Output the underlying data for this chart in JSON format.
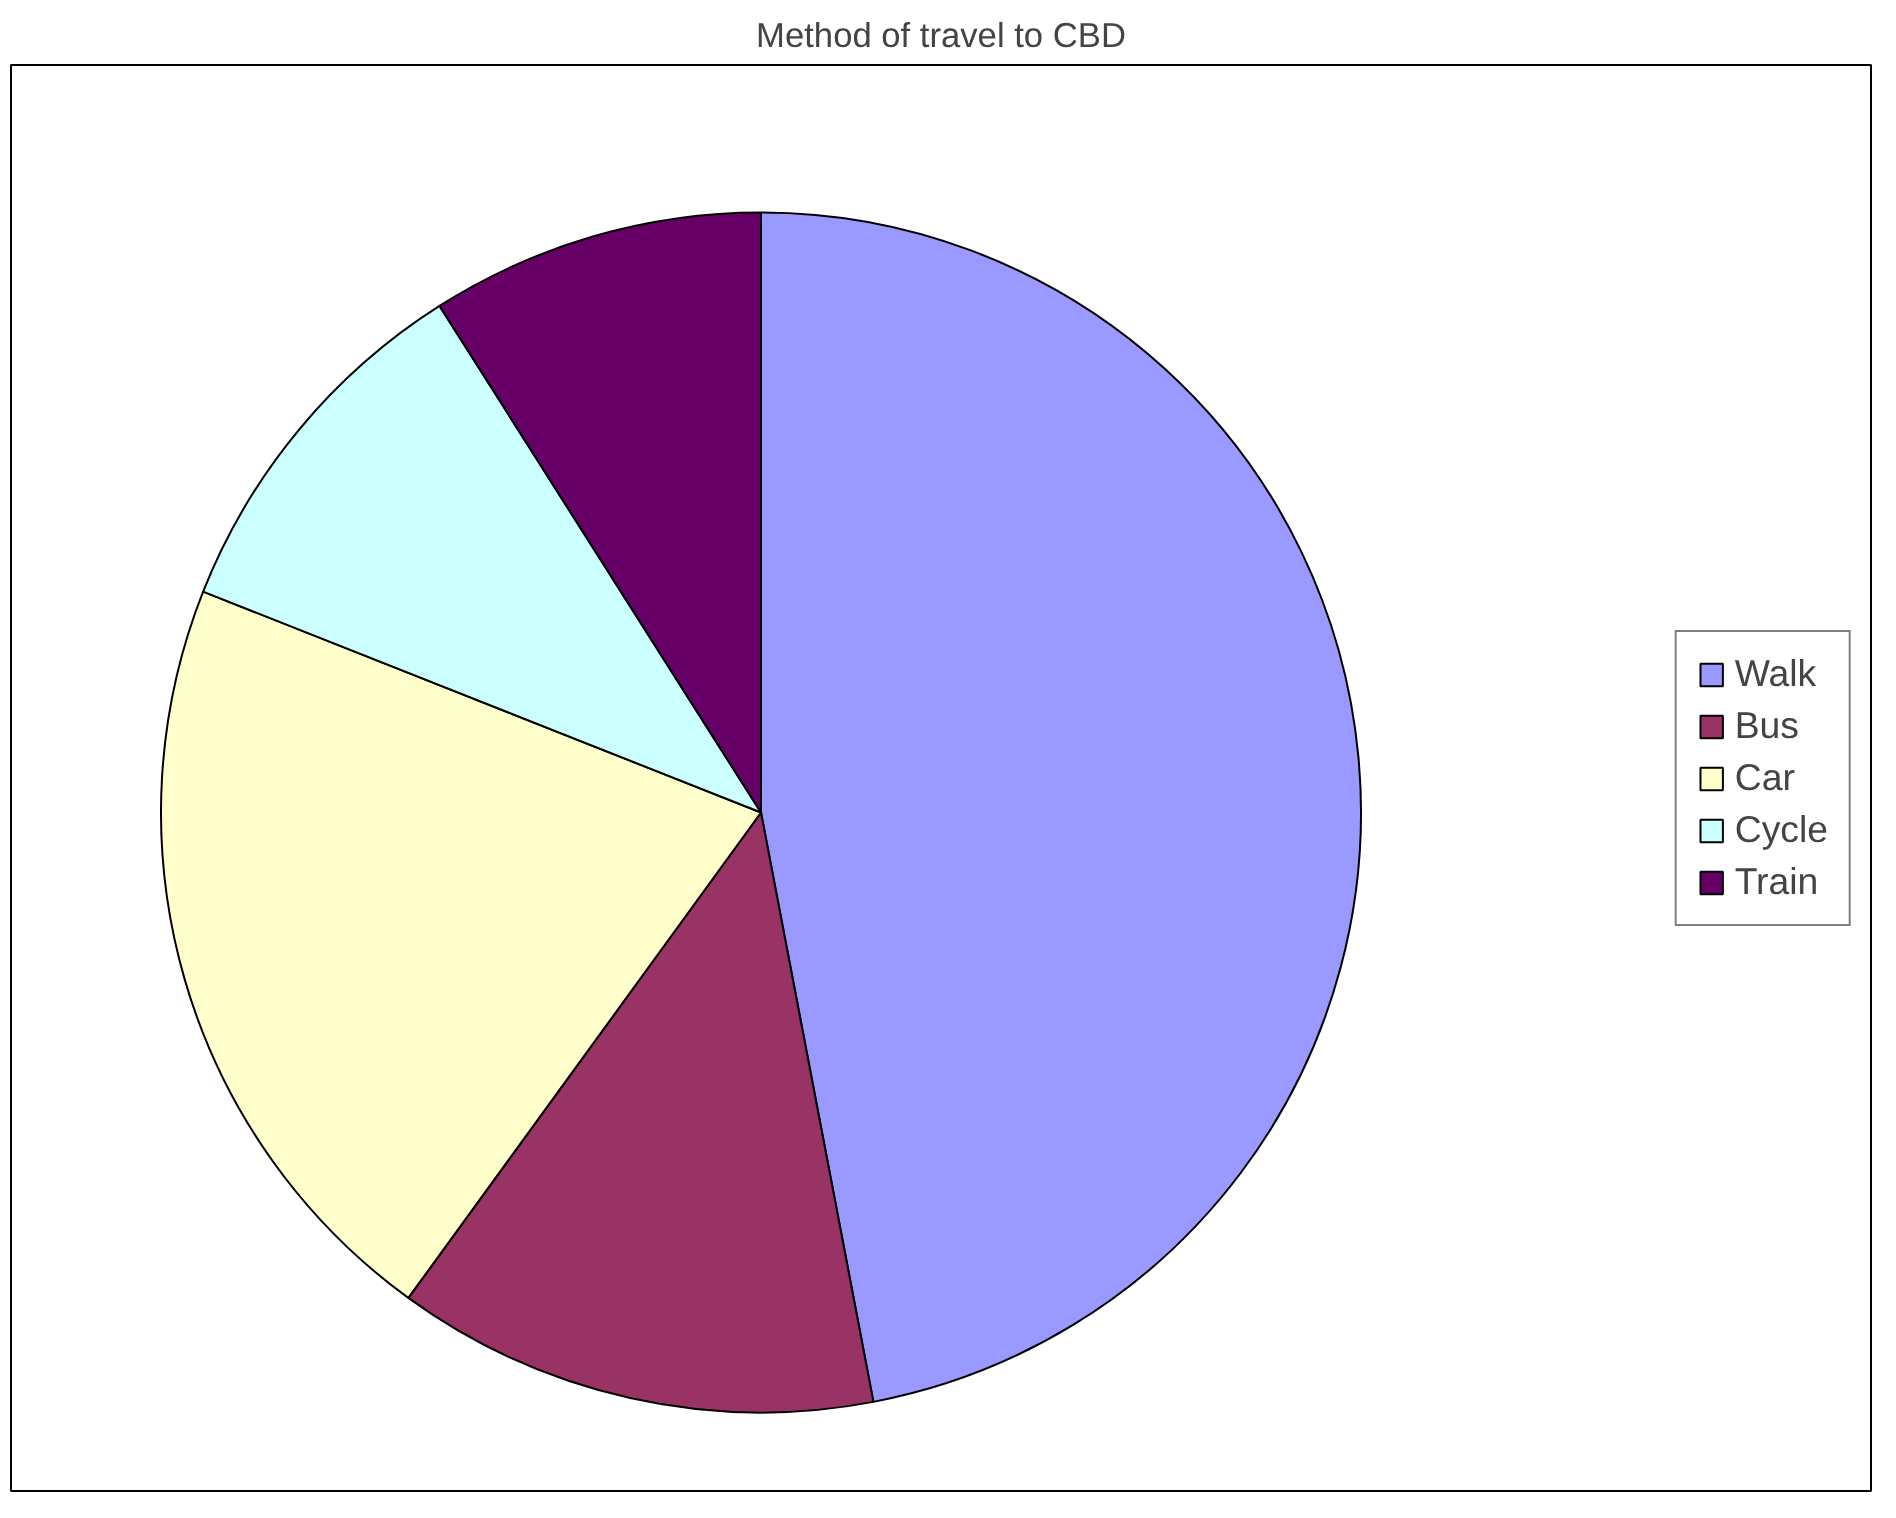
{
  "chart_data": {
    "type": "pie",
    "title": "Method of travel to CBD",
    "categories": [
      "Walk",
      "Bus",
      "Car",
      "Cycle",
      "Train"
    ],
    "values": [
      47,
      13,
      21,
      10,
      9
    ],
    "colors": [
      "#9999ff",
      "#993366",
      "#ffffcc",
      "#ccffff",
      "#660066"
    ],
    "legend": "right"
  }
}
